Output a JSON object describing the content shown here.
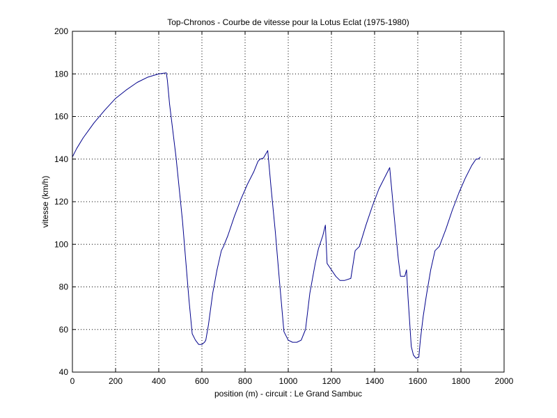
{
  "chart_data": {
    "type": "line",
    "title": "Top-Chronos - Courbe de vitesse pour la Lotus Eclat (1975-1980)",
    "xlabel": "position (m) - circuit : Le Grand Sambuc",
    "ylabel": "vitesse (km/h)",
    "xlim": [
      0,
      2000
    ],
    "ylim": [
      40,
      200
    ],
    "xticks": [
      "0",
      "200",
      "400",
      "600",
      "800",
      "1000",
      "1200",
      "1400",
      "1600",
      "1800",
      "2000"
    ],
    "yticks": [
      "40",
      "60",
      "80",
      "100",
      "120",
      "140",
      "160",
      "180",
      "200"
    ],
    "grid": true,
    "line_color": "#00008b",
    "series": [
      {
        "x": [
          0,
          20,
          50,
          100,
          150,
          200,
          250,
          300,
          350,
          400,
          435,
          440,
          450,
          480,
          510,
          540,
          555,
          570,
          585,
          600,
          612,
          618,
          630,
          650,
          670,
          690,
          700,
          720,
          750,
          780,
          810,
          840,
          860,
          870,
          885,
          905,
          920,
          940,
          960,
          980,
          1000,
          1020,
          1040,
          1060,
          1080,
          1100,
          1125,
          1140,
          1160,
          1172,
          1180,
          1200,
          1220,
          1240,
          1260,
          1290,
          1310,
          1330,
          1360,
          1390,
          1420,
          1450,
          1470,
          1490,
          1510,
          1520,
          1540,
          1548,
          1555,
          1570,
          1580,
          1592,
          1605,
          1612,
          1625,
          1640,
          1660,
          1680,
          1700,
          1730,
          1760,
          1790,
          1820,
          1850,
          1870,
          1880,
          1890
        ],
        "y": [
          141,
          145,
          150,
          157,
          163,
          168.5,
          172.5,
          176,
          178.5,
          180,
          180.5,
          177,
          166,
          141,
          111,
          74,
          58,
          55,
          53,
          53,
          54,
          55,
          62,
          77,
          88,
          97,
          99,
          104,
          113,
          121,
          128,
          134,
          139,
          140,
          140.5,
          144,
          127,
          106,
          82,
          59,
          55,
          54,
          54,
          55,
          60,
          77,
          91,
          98,
          104,
          109,
          91,
          88,
          85,
          83,
          83,
          84,
          97,
          99,
          109,
          118,
          126,
          132,
          136,
          114,
          93,
          85,
          85,
          88,
          75,
          52,
          48,
          46.5,
          47,
          55,
          66,
          76,
          88,
          97,
          99,
          107,
          116,
          124,
          131,
          137,
          140,
          140,
          141
        ]
      }
    ]
  }
}
